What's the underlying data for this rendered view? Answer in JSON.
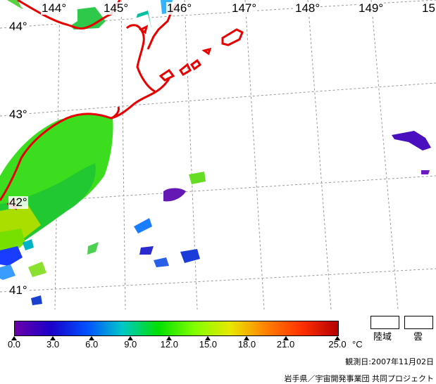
{
  "longitude_labels": [
    "144°",
    "145°",
    "146°",
    "147°",
    "148°",
    "149°",
    "15"
  ],
  "latitude_labels": [
    "44°",
    "43°",
    "42°",
    "41°"
  ],
  "colors": {
    "coastline": "#e60000",
    "grid": "#999999",
    "land_fill": "#ffffff",
    "colorbar_stops": [
      "#6a00a8",
      "#1a00c8",
      "#0050ff",
      "#00c8c8",
      "#00e000",
      "#80ff00",
      "#e8e800",
      "#ff8000",
      "#ff3000",
      "#b40000"
    ]
  },
  "colorbar": {
    "min": 0.0,
    "max": 25.0,
    "tick_labels": [
      "0.0",
      "3.0",
      "6.0",
      "9.0",
      "12.0",
      "15.0",
      "18.0",
      "21.0",
      "25.0"
    ],
    "unit": "°C"
  },
  "legend": {
    "land_label": "陸域",
    "cloud_label": "雲"
  },
  "observation_date": "観測日:2007年11月02日",
  "credit": "岩手県／宇宙開発事業団 共同プロジェクト"
}
